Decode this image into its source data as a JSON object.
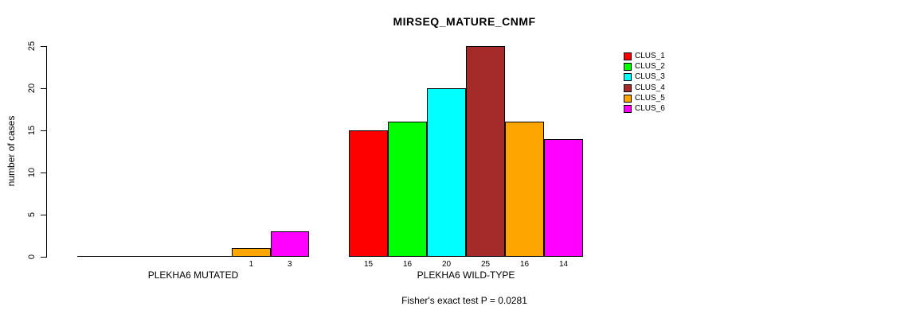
{
  "chart_data": {
    "type": "bar",
    "title": "MIRSEQ_MATURE_CNMF",
    "ylabel": "number of cases",
    "xlabel": "",
    "ylim": [
      0,
      25
    ],
    "yticks": [
      0,
      5,
      10,
      15,
      20,
      25
    ],
    "grid": false,
    "legend_position": "top-right",
    "annotation": "Fisher's exact test P = 0.0281",
    "clusters": [
      {
        "name": "CLUS_1",
        "color": "#ff0000"
      },
      {
        "name": "CLUS_2",
        "color": "#00ff00"
      },
      {
        "name": "CLUS_3",
        "color": "#00ffff"
      },
      {
        "name": "CLUS_4",
        "color": "#a52a2a"
      },
      {
        "name": "CLUS_5",
        "color": "#ffa500"
      },
      {
        "name": "CLUS_6",
        "color": "#ff00ff"
      }
    ],
    "groups": [
      {
        "label": "PLEKHA6 MUTATED",
        "values": [
          0,
          0,
          0,
          0,
          1,
          3
        ],
        "bar_labels": [
          "",
          "",
          "",
          "",
          "1",
          "3"
        ]
      },
      {
        "label": "PLEKHA6 WILD-TYPE",
        "values": [
          15,
          16,
          20,
          25,
          16,
          14
        ],
        "bar_labels": [
          "15",
          "16",
          "20",
          "25",
          "16",
          "14"
        ]
      }
    ]
  }
}
